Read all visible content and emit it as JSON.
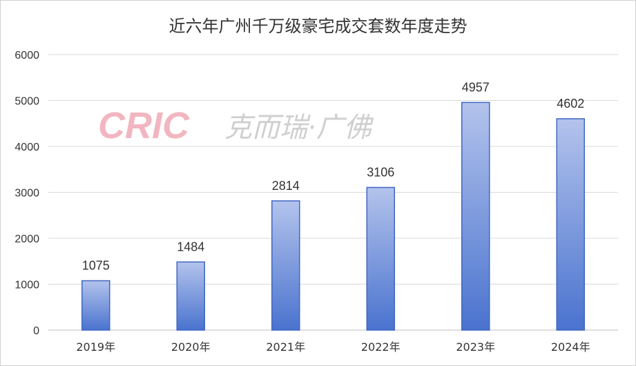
{
  "colors": {
    "bar_top": "#b3c3ec",
    "bar_bottom": "#4a73cf",
    "bar_stroke": "#3f66c2",
    "grid": "#d9d9d9",
    "axis": "#bfbfbf",
    "text": "#333333",
    "watermark": "#f2b6c1",
    "watermark_cn": "#cfcfcf"
  },
  "watermark": {
    "latin": "CRIC",
    "chinese": "克而瑞·广佛"
  },
  "chart_data": {
    "type": "bar",
    "title": "近六年广州千万级豪宅成交套数年度走势",
    "categories": [
      "2019年",
      "2020年",
      "2021年",
      "2022年",
      "2023年",
      "2024年"
    ],
    "values": [
      1075,
      1484,
      2814,
      3106,
      4957,
      4602
    ],
    "data_labels": [
      "1075",
      "1484",
      "2814",
      "3106",
      "4957",
      "4602"
    ],
    "ylim": [
      0,
      6000
    ],
    "yticks": [
      0,
      1000,
      2000,
      3000,
      4000,
      5000,
      6000
    ],
    "grid": true,
    "legend": "none"
  }
}
